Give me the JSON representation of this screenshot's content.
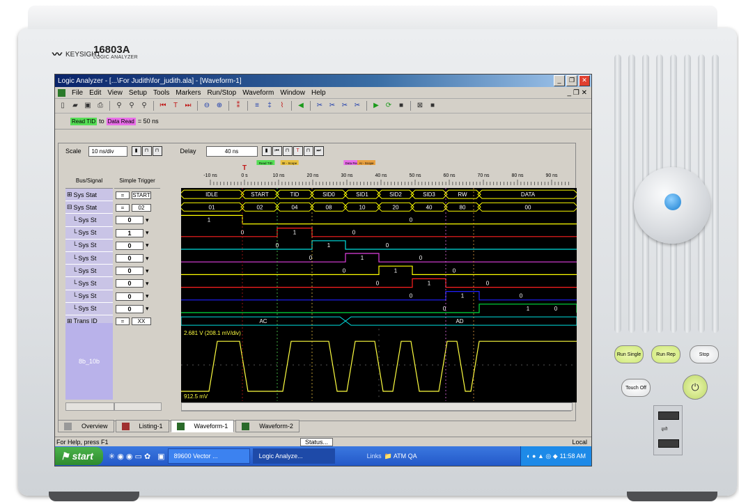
{
  "device": {
    "brand": "KEYSIGHT",
    "model": "16803A",
    "model_subtitle": "LOGIC ANALYZER"
  },
  "window": {
    "title": "Logic Analyzer - [...\\For Judith\\for_judith.ala] - [Waveform-1]"
  },
  "menu": [
    "File",
    "Edit",
    "View",
    "Setup",
    "Tools",
    "Markers",
    "Run/Stop",
    "Waveform",
    "Window",
    "Help"
  ],
  "marker_measure": {
    "from": "Read TID",
    "word_to": "to",
    "to": "Data Read",
    "result": "= 50 ns"
  },
  "scale": {
    "label": "Scale",
    "value": "10 ns/div"
  },
  "delay": {
    "label": "Delay",
    "value": "40 ns"
  },
  "columns": {
    "bus_signal": "Bus/Signal",
    "simple_trigger": "Simple Trigger"
  },
  "ruler": {
    "ticks": [
      "-10 ns",
      "0 s",
      "10 ns",
      "20 ns",
      "30 ns",
      "40 ns",
      "50 ns",
      "60 ns",
      "70 ns",
      "80 ns",
      "90 ns"
    ],
    "markers": [
      "Read TID",
      "BI - Scope",
      "Data Read",
      "AI - Scope"
    ]
  },
  "signals": [
    {
      "name": "Sys Stat",
      "trigger": "START",
      "op": "=",
      "expand": "+"
    },
    {
      "name": "Sys Stat",
      "trigger": "02",
      "op": "=",
      "expand": "-"
    },
    {
      "name": "Sys St",
      "trigger": "0"
    },
    {
      "name": "Sys St",
      "trigger": "1"
    },
    {
      "name": "Sys St",
      "trigger": "0"
    },
    {
      "name": "Sys St",
      "trigger": "0"
    },
    {
      "name": "Sys St",
      "trigger": "0"
    },
    {
      "name": "Sys St",
      "trigger": "0"
    },
    {
      "name": "Sys St",
      "trigger": "0"
    },
    {
      "name": "Sys St",
      "trigger": "0"
    },
    {
      "name": "Trans ID",
      "trigger": "XX",
      "op": "=",
      "expand": "+"
    }
  ],
  "analog_signal": "8b_10b",
  "state_bus": [
    "IDLE",
    "START",
    "TID",
    "SID0",
    "SID1",
    "SID2",
    "SID3",
    "RW",
    "DATA"
  ],
  "hex_bus": [
    "01",
    "02",
    "04",
    "08",
    "10",
    "20",
    "40",
    "80",
    "00"
  ],
  "bit_labels": [
    [
      "1",
      "0"
    ],
    [
      "0",
      "1",
      "0"
    ],
    [
      "0",
      "1",
      "0"
    ],
    [
      "0",
      "1",
      "0"
    ],
    [
      "0",
      "1",
      "0"
    ],
    [
      "0",
      "1",
      "0"
    ],
    [
      "0",
      "1",
      "0"
    ],
    [
      "0",
      "1",
      "0"
    ]
  ],
  "trans_bus": [
    "AC",
    "AD"
  ],
  "scope": {
    "top_label": "2.681 V (208.1 mV/div)",
    "bottom_label": "912.5 mV"
  },
  "colors": {
    "bits": [
      "#ffff00",
      "#ff2020",
      "#00e0e0",
      "#e040e0",
      "#ffff00",
      "#ff2020",
      "#2020ff",
      "#00e040"
    ],
    "bus": "#ffff00"
  },
  "tabs": [
    {
      "label": "Overview"
    },
    {
      "label": "Listing-1"
    },
    {
      "label": "Waveform-1"
    },
    {
      "label": "Waveform-2"
    }
  ],
  "status": {
    "help": "For Help, press F1",
    "button": "Status...",
    "mode": "Local"
  },
  "taskbar": {
    "start": "start",
    "tasks": [
      "89600 Vector ...",
      "Logic Analyze..."
    ],
    "links": "Links",
    "folder": "ATM QA",
    "time": "11:58 AM"
  },
  "front_panel": {
    "run_single": "Run Single",
    "run_rep": "Run Rep",
    "stop": "Stop",
    "touch_off": "Touch Off"
  }
}
